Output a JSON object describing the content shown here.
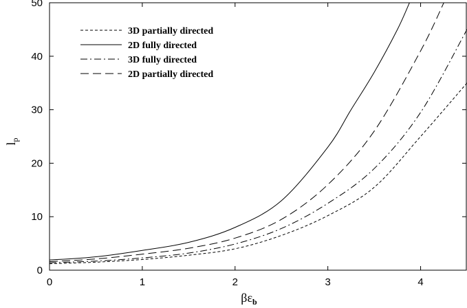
{
  "chart_data": {
    "type": "line",
    "xlabel": "βε",
    "xlabel_sub": "b",
    "ylabel": "l",
    "ylabel_sub": "p",
    "xlim": [
      0,
      4.5
    ],
    "ylim": [
      0,
      50
    ],
    "xticks": [
      0,
      1,
      2,
      3,
      4
    ],
    "yticks": [
      0,
      10,
      20,
      30,
      40,
      50
    ],
    "grid": false,
    "legend_position": "top-left",
    "series": [
      {
        "name": "3D partially directed",
        "dash": "dashed-short",
        "x": [
          0,
          0.5,
          1,
          1.5,
          2,
          2.5,
          3,
          3.5,
          4,
          4.5
        ],
        "y": [
          1.2,
          1.5,
          2.0,
          2.8,
          4.0,
          6.5,
          10.2,
          15.5,
          25.0,
          35.0
        ]
      },
      {
        "name": "2D fully directed",
        "dash": "solid",
        "x": [
          0,
          0.5,
          1,
          1.5,
          2,
          2.5,
          3,
          3.25,
          3.5,
          3.75,
          3.88
        ],
        "y": [
          1.9,
          2.5,
          3.7,
          5.2,
          8.0,
          13.0,
          23.0,
          30.0,
          37.0,
          45.0,
          50.0
        ]
      },
      {
        "name": "3D fully directed",
        "dash": "dash-dot",
        "x": [
          0,
          0.5,
          1,
          1.5,
          2,
          2.5,
          3,
          3.5,
          4,
          4.5
        ],
        "y": [
          1.4,
          1.7,
          2.3,
          3.2,
          4.9,
          7.8,
          12.5,
          19.0,
          29.5,
          45.0
        ]
      },
      {
        "name": "2D partially directed",
        "dash": "dashed-long",
        "x": [
          0,
          0.5,
          1,
          1.5,
          2,
          2.5,
          3,
          3.5,
          4,
          4.25
        ],
        "y": [
          1.6,
          2.1,
          3.0,
          4.1,
          6.0,
          9.5,
          16.0,
          26.0,
          41.0,
          50.0
        ]
      }
    ]
  }
}
